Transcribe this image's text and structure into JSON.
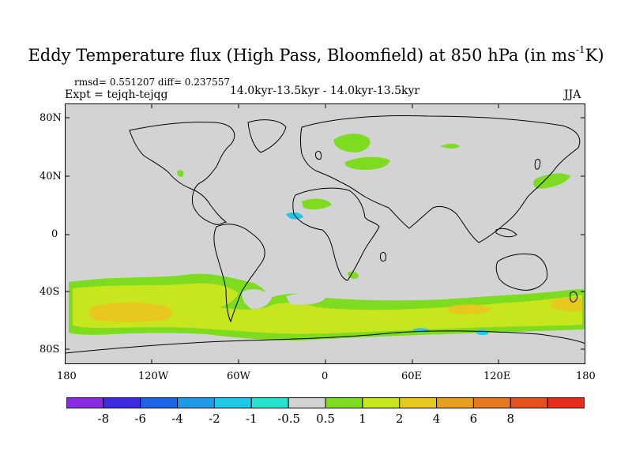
{
  "title": {
    "main": "Eddy Temperature flux (High Pass, Bloomfield) at 850 hPa (in ms",
    "sup": "-1",
    "tail": "K)"
  },
  "stats": "rmsd= 0.551207 diff= 0.237557",
  "expt": "Expt = tejqh-tejqg",
  "period": "14.0kyr-13.5kyr - 14.0kyr-13.5kyr",
  "season": "JJA",
  "axes": {
    "y_ticks": [
      "80N",
      "40N",
      "0",
      "40S",
      "80S"
    ],
    "x_ticks": [
      "180",
      "120W",
      "60W",
      "0",
      "60E",
      "120E",
      "180"
    ]
  },
  "colorbar": {
    "colors": [
      "#8a2be2",
      "#3c2be0",
      "#1e64e6",
      "#1e9ae6",
      "#1ec8e6",
      "#27e2d0",
      "#d3d3d3",
      "#7ddc1f",
      "#c8e61e",
      "#e6c81e",
      "#e6a01e",
      "#e6781e",
      "#e6501e",
      "#e62d1e"
    ],
    "labels": [
      "-8",
      "-6",
      "-4",
      "-2",
      "-1",
      "-0.5",
      "0.5",
      "1",
      "2",
      "4",
      "6",
      "8"
    ]
  },
  "map_colors": {
    "ocean_land": "#d3d3d3",
    "level_1": "#7ddc1f",
    "level_2": "#c8e61e",
    "level_4": "#e6c81e",
    "negative": "#1ec8e6"
  }
}
